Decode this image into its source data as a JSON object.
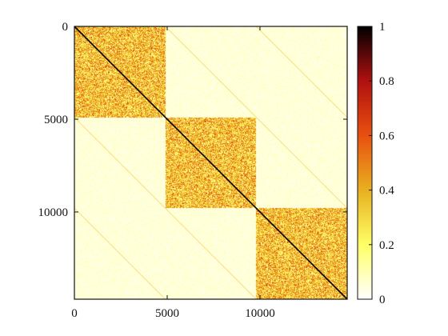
{
  "chart_data": {
    "type": "heatmap",
    "title": "",
    "xlabel": "",
    "ylabel": "",
    "n": 14700,
    "xlim": [
      0,
      14700
    ],
    "ylim": [
      0,
      14700
    ],
    "y_axis_inverted": true,
    "x_ticks": [
      0,
      5000,
      10000
    ],
    "x_tick_labels": [
      "0",
      "5000",
      "10000"
    ],
    "y_ticks": [
      0,
      5000,
      10000
    ],
    "y_tick_labels": [
      "0",
      "5000",
      "10000"
    ],
    "blocks": [
      {
        "start": 0,
        "end": 4900,
        "mean_value": 0.35
      },
      {
        "start": 4900,
        "end": 9800,
        "mean_value": 0.35
      },
      {
        "start": 9800,
        "end": 14700,
        "mean_value": 0.35
      }
    ],
    "off_block_mean_value": 0.05,
    "main_diagonal_value": 1.0,
    "off_diagonal_offsets": [
      4900,
      9800
    ],
    "off_diagonal_value": 0.35,
    "colormap": "hot_r",
    "colorbar": {
      "min": 0,
      "max": 1,
      "ticks": [
        0,
        0.2,
        0.4,
        0.6,
        0.8,
        1
      ],
      "tick_labels": [
        "0",
        "0.2",
        "0.4",
        "0.6",
        "0.8",
        "1"
      ],
      "stops": [
        {
          "value": 0.0,
          "color": "#ffffff"
        },
        {
          "value": 0.2,
          "color": "#ffff66"
        },
        {
          "value": 0.4,
          "color": "#e8b020"
        },
        {
          "value": 0.6,
          "color": "#e85010"
        },
        {
          "value": 0.8,
          "color": "#b01010"
        },
        {
          "value": 1.0,
          "color": "#000000"
        }
      ]
    }
  }
}
